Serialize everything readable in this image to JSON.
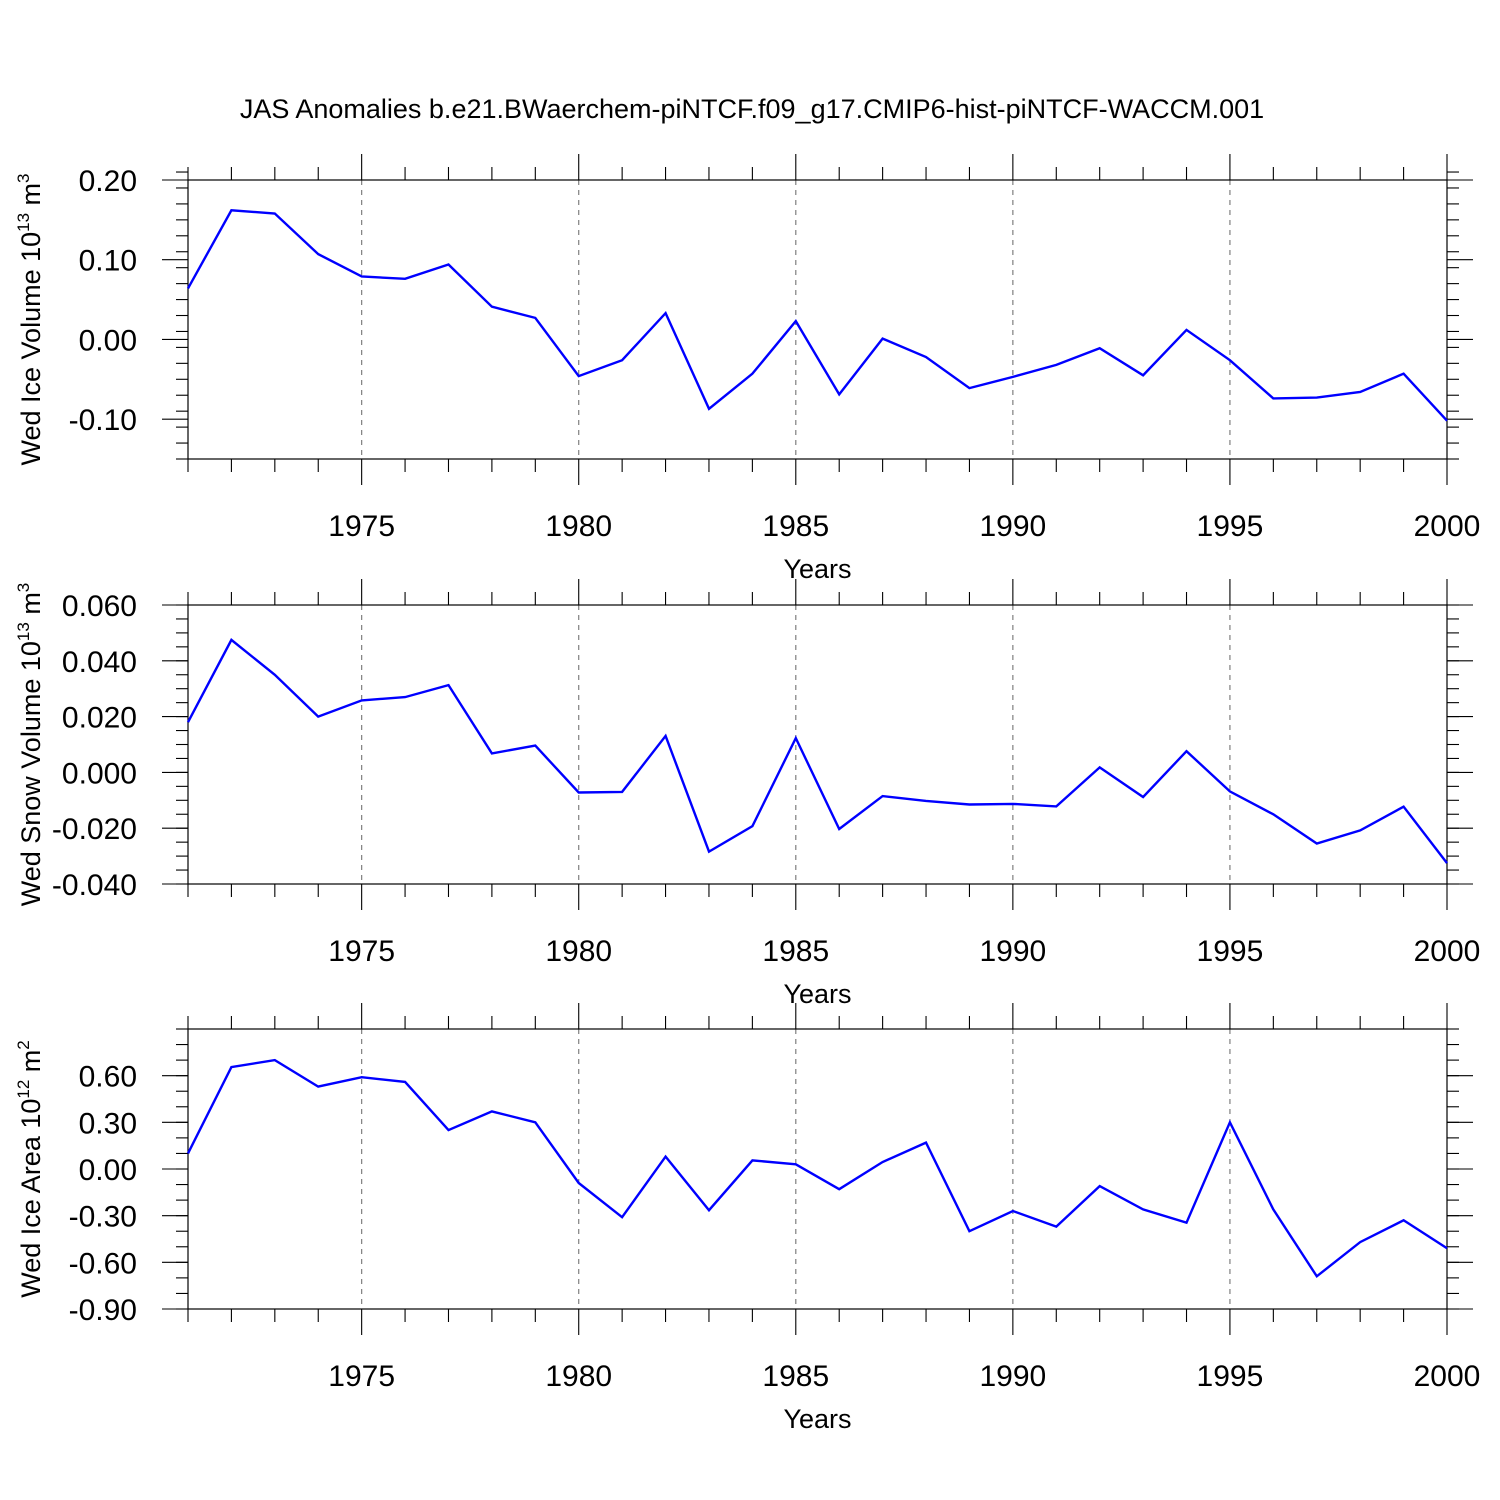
{
  "title": "JAS Anomalies b.e21.BWaerchem-piNTCF.f09_g17.CMIP6-hist-piNTCF-WACCM.001",
  "colors": {
    "line": "#0000ff",
    "grid": "#7f7f7f",
    "axes": "#000000"
  },
  "chart_data": [
    {
      "type": "line",
      "xlabel": "Years",
      "ylabel": {
        "text": "Wed Ice Volume 10",
        "sup": "13",
        "unit": " m",
        "unit_sup": "3"
      },
      "xlim": [
        1971,
        2000
      ],
      "ylim": [
        -0.15,
        0.2
      ],
      "grid": "vertical dashed at labeled years",
      "x_ticks": [
        "1975",
        "1980",
        "1985",
        "1990",
        "1995",
        "2000"
      ],
      "y_ticks": [
        "0.20",
        "0.10",
        "0.00",
        "-0.10"
      ],
      "y_tick_values": [
        0.2,
        0.1,
        0.0,
        -0.1
      ],
      "x": [
        1971,
        1972,
        1973,
        1974,
        1975,
        1976,
        1977,
        1978,
        1979,
        1980,
        1981,
        1982,
        1983,
        1984,
        1985,
        1986,
        1987,
        1988,
        1989,
        1990,
        1991,
        1992,
        1993,
        1994,
        1995,
        1996,
        1997,
        1998,
        1999,
        2000
      ],
      "series": [
        {
          "values": [
            0.064,
            0.162,
            0.158,
            0.107,
            0.079,
            0.076,
            0.094,
            0.041,
            0.027,
            -0.046,
            -0.026,
            0.033,
            -0.087,
            -0.043,
            0.023,
            -0.069,
            0.001,
            -0.022,
            -0.061,
            -0.047,
            -0.032,
            -0.011,
            -0.045,
            0.012,
            -0.026,
            -0.074,
            -0.073,
            -0.066,
            -0.043,
            -0.102
          ]
        }
      ]
    },
    {
      "type": "line",
      "xlabel": "Years",
      "ylabel": {
        "text": "Wed Snow Volume 10",
        "sup": "13",
        "unit": " m",
        "unit_sup": "3"
      },
      "xlim": [
        1971,
        2000
      ],
      "ylim": [
        -0.04,
        0.06
      ],
      "grid": "vertical dashed at labeled years",
      "x_ticks": [
        "1975",
        "1980",
        "1985",
        "1990",
        "1995",
        "2000"
      ],
      "y_ticks": [
        "0.060",
        "0.040",
        "0.020",
        "0.000",
        "-0.020",
        "-0.040"
      ],
      "y_tick_values": [
        0.06,
        0.04,
        0.02,
        0.0,
        -0.02,
        -0.04
      ],
      "x": [
        1971,
        1972,
        1973,
        1974,
        1975,
        1976,
        1977,
        1978,
        1979,
        1980,
        1981,
        1982,
        1983,
        1984,
        1985,
        1986,
        1987,
        1988,
        1989,
        1990,
        1991,
        1992,
        1993,
        1994,
        1995,
        1996,
        1997,
        1998,
        1999,
        2000
      ],
      "series": [
        {
          "values": [
            0.018,
            0.0475,
            0.035,
            0.02,
            0.0258,
            0.027,
            0.0313,
            0.0068,
            0.0096,
            -0.0072,
            -0.007,
            0.0131,
            -0.0284,
            -0.0193,
            0.0123,
            -0.0203,
            -0.0085,
            -0.0102,
            -0.0115,
            -0.0113,
            -0.0122,
            0.0018,
            -0.0088,
            0.0076,
            -0.0068,
            -0.015,
            -0.0255,
            -0.0208,
            -0.0123,
            -0.0325
          ]
        }
      ]
    },
    {
      "type": "line",
      "xlabel": "Years",
      "ylabel": {
        "text": "Wed Ice Area 10",
        "sup": "12",
        "unit": " m",
        "unit_sup": "2"
      },
      "xlim": [
        1971,
        2000
      ],
      "ylim": [
        -0.9,
        0.9
      ],
      "grid": "vertical dashed at labeled years",
      "x_ticks": [
        "1975",
        "1980",
        "1985",
        "1990",
        "1995",
        "2000"
      ],
      "y_ticks": [
        "0.60",
        "0.30",
        "0.00",
        "-0.30",
        "-0.60",
        "-0.90"
      ],
      "y_tick_values": [
        0.6,
        0.3,
        0.0,
        -0.3,
        -0.6,
        -0.9
      ],
      "x": [
        1971,
        1972,
        1973,
        1974,
        1975,
        1976,
        1977,
        1978,
        1979,
        1980,
        1981,
        1982,
        1983,
        1984,
        1985,
        1986,
        1987,
        1988,
        1989,
        1990,
        1991,
        1992,
        1993,
        1994,
        1995,
        1996,
        1997,
        1998,
        1999,
        2000
      ],
      "series": [
        {
          "values": [
            0.1,
            0.655,
            0.7,
            0.53,
            0.59,
            0.56,
            0.25,
            0.37,
            0.3,
            -0.09,
            -0.31,
            0.08,
            -0.265,
            0.055,
            0.03,
            -0.13,
            0.045,
            0.17,
            -0.4,
            -0.27,
            -0.37,
            -0.11,
            -0.26,
            -0.345,
            0.3,
            -0.26,
            -0.69,
            -0.47,
            -0.33,
            -0.51
          ]
        }
      ]
    }
  ]
}
